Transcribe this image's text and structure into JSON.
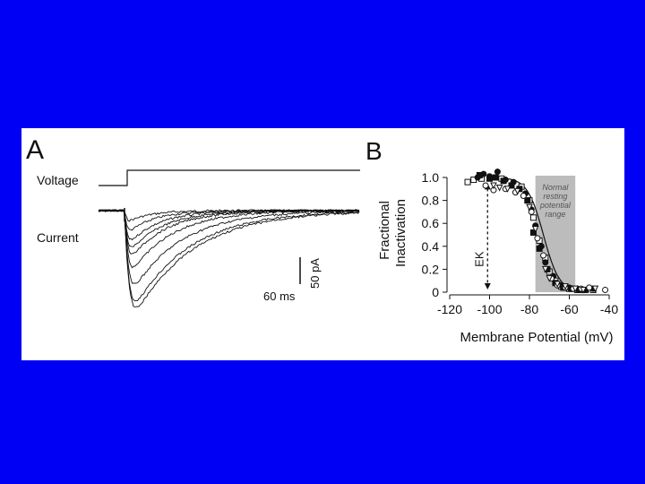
{
  "panel_a": {
    "letter": "A",
    "voltage_label": "Voltage",
    "current_label": "Current",
    "scale_current": "50  pA",
    "scale_time": "60  ms",
    "trace_peaks": [
      0.1,
      0.2,
      0.3,
      0.38,
      0.45,
      0.58,
      0.76,
      0.93,
      1.0
    ]
  },
  "chart_data": {
    "type": "scatter",
    "panel_letter": "B",
    "xlabel": "Membrane  Potential  (mV)",
    "ylabel_line1": "Fractional",
    "ylabel_line2": "Inactivation",
    "xlim": [
      -120,
      -40
    ],
    "ylim": [
      0,
      1.0
    ],
    "xticks": [
      -120,
      -100,
      -80,
      -60,
      -40
    ],
    "xtick_labels": [
      "-120",
      "-100",
      "-80",
      "-60",
      "-40"
    ],
    "yticks": [
      0,
      0.2,
      0.4,
      0.6,
      0.8,
      1.0
    ],
    "ytick_labels": [
      "0",
      "0.2",
      "0.4",
      "0.6",
      "0.8",
      "1.0"
    ],
    "shaded_range": [
      -77,
      -57
    ],
    "shaded_label": [
      "Normal",
      "resting",
      "potential",
      "range"
    ],
    "ek_label": "EK",
    "ek_x": -101,
    "fit_curve": {
      "v_half": -73,
      "slope": 4
    },
    "series": [
      {
        "marker": "open-square",
        "points": [
          [
            -111,
            0.96
          ],
          [
            -108,
            0.98
          ],
          [
            -104,
            0.99
          ],
          [
            -94,
            0.99
          ],
          [
            -84,
            0.92
          ],
          [
            -80,
            0.8
          ],
          [
            -78,
            0.65
          ],
          [
            -75,
            0.45
          ],
          [
            -72,
            0.3
          ],
          [
            -70,
            0.18
          ],
          [
            -67,
            0.1
          ],
          [
            -64,
            0.05
          ],
          [
            -60,
            0.03
          ],
          [
            -56,
            0.02
          ],
          [
            -52,
            0.02
          ],
          [
            -48,
            0.02
          ]
        ]
      },
      {
        "marker": "filled-circle",
        "points": [
          [
            -106,
            1.0
          ],
          [
            -103,
            1.03
          ],
          [
            -100,
            1.01
          ],
          [
            -96,
            1.05
          ],
          [
            -92,
            0.98
          ],
          [
            -88,
            0.96
          ],
          [
            -82,
            0.86
          ],
          [
            -79,
            0.72
          ],
          [
            -77,
            0.58
          ],
          [
            -74,
            0.4
          ],
          [
            -72,
            0.26
          ],
          [
            -68,
            0.14
          ],
          [
            -64,
            0.06
          ],
          [
            -60,
            0.04
          ],
          [
            -56,
            0.03
          ],
          [
            -52,
            0.02
          ],
          [
            -48,
            0.03
          ]
        ]
      },
      {
        "marker": "filled-square",
        "points": [
          [
            -105,
            1.02
          ],
          [
            -100,
            0.99
          ],
          [
            -97,
            1.0
          ],
          [
            -93,
            0.97
          ],
          [
            -89,
            0.93
          ],
          [
            -85,
            0.9
          ],
          [
            -81,
            0.8
          ],
          [
            -78,
            0.52
          ],
          [
            -75,
            0.38
          ],
          [
            -71,
            0.2
          ],
          [
            -67,
            0.08
          ],
          [
            -63,
            0.04
          ],
          [
            -59,
            0.03
          ],
          [
            -55,
            0.02
          ]
        ]
      },
      {
        "marker": "open-circle",
        "points": [
          [
            -102,
            0.93
          ],
          [
            -98,
            0.89
          ],
          [
            -92,
            0.9
          ],
          [
            -87,
            0.87
          ],
          [
            -83,
            0.84
          ],
          [
            -79,
            0.7
          ],
          [
            -76,
            0.47
          ],
          [
            -73,
            0.32
          ],
          [
            -69,
            0.12
          ],
          [
            -66,
            0.06
          ],
          [
            -62,
            0.04
          ],
          [
            -58,
            0.03
          ],
          [
            -54,
            0.03
          ],
          [
            -50,
            0.04
          ],
          [
            -42,
            0.02
          ]
        ]
      },
      {
        "marker": "open-triangle-down",
        "points": [
          [
            -98,
            0.93
          ],
          [
            -95,
            0.91
          ],
          [
            -91,
            0.9
          ],
          [
            -86,
            0.88
          ],
          [
            -80,
            0.74
          ],
          [
            -77,
            0.55
          ],
          [
            -72,
            0.2
          ],
          [
            -70,
            0.12
          ],
          [
            -66,
            0.07
          ],
          [
            -62,
            0.05
          ],
          [
            -57,
            0.03
          ],
          [
            -53,
            0.02
          ],
          [
            -47,
            0.03
          ]
        ]
      }
    ]
  }
}
